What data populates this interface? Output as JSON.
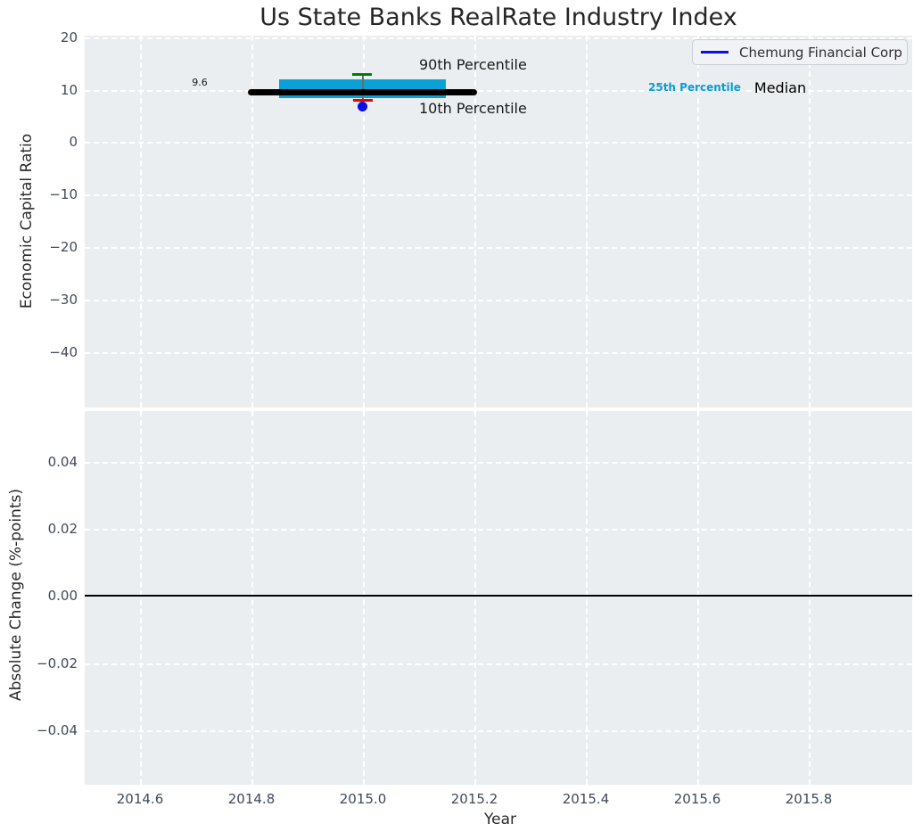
{
  "title": "Us State Banks RealRate Industry Index",
  "axes": {
    "top": {
      "ylabel": "Economic Capital Ratio",
      "yticks": [
        "20",
        "10",
        "0",
        "−10",
        "−20",
        "−30",
        "−40"
      ],
      "legend": {
        "series_label": "Chemung Financial Corp"
      },
      "annotations": {
        "median_value": "9.6",
        "p90_label": "90th Percentile",
        "p10_label": "10th Percentile",
        "p25_label": "25th Percentile",
        "median_label": "Median"
      }
    },
    "bottom": {
      "ylabel": "Absolute Change (%-points)",
      "xlabel": "Year",
      "yticks": [
        "0.04",
        "0.02",
        "0.00",
        "−0.02",
        "−0.04"
      ],
      "xticks": [
        "2014.6",
        "2014.8",
        "2015.0",
        "2015.2",
        "2015.4",
        "2015.6",
        "2015.8"
      ]
    }
  },
  "colors": {
    "axes_background": "#EAEEF0",
    "grid": "#FFFFFF",
    "tick_text": "#3E4A59",
    "box_fill": "#0AA1D6",
    "median_line": "#000000",
    "p90_cap": "#007D00",
    "p10_cap": "#EE0000",
    "company_marker": "#0D0DE8",
    "p25_label_text": "#0A9CD8",
    "legend_line": "#0D0DE8"
  },
  "chart_data": [
    {
      "type": "box",
      "title": "Us State Banks RealRate Industry Index",
      "xlabel": "Year",
      "ylabel": "Economic Capital Ratio",
      "x": 2015.0,
      "box": {
        "median": 9.6,
        "q1": 8.5,
        "q3": 11.9,
        "p10": 8.2,
        "p90": 13.0
      },
      "median_data_label": "9.6",
      "series": [
        {
          "name": "Chemung Financial Corp",
          "x": [
            2015.0
          ],
          "y": [
            7.2
          ],
          "marker": "circle",
          "color": "#0D0DE8"
        }
      ],
      "xticks": [
        2014.6,
        2014.8,
        2015.0,
        2015.2,
        2015.4,
        2015.6,
        2015.8
      ],
      "yticks": [
        20,
        10,
        0,
        -10,
        -20,
        -30,
        -40
      ],
      "xlim": [
        2014.5,
        2015.99
      ],
      "ylim": [
        -50.3,
        20.4
      ],
      "grid": true,
      "legend_position": "upper right",
      "annotations": [
        "90th Percentile",
        "10th Percentile",
        "25th Percentile",
        "Median",
        "9.6"
      ]
    },
    {
      "type": "line",
      "xlabel": "Year",
      "ylabel": "Absolute Change (%-points)",
      "series": [],
      "reference_line_y": 0.0,
      "xticks": [
        2014.6,
        2014.8,
        2015.0,
        2015.2,
        2015.4,
        2015.6,
        2015.8
      ],
      "yticks": [
        0.04,
        0.02,
        0.0,
        -0.02,
        -0.04
      ],
      "xlim": [
        2014.5,
        2015.99
      ],
      "ylim": [
        -0.056,
        0.055
      ],
      "grid": true
    }
  ]
}
